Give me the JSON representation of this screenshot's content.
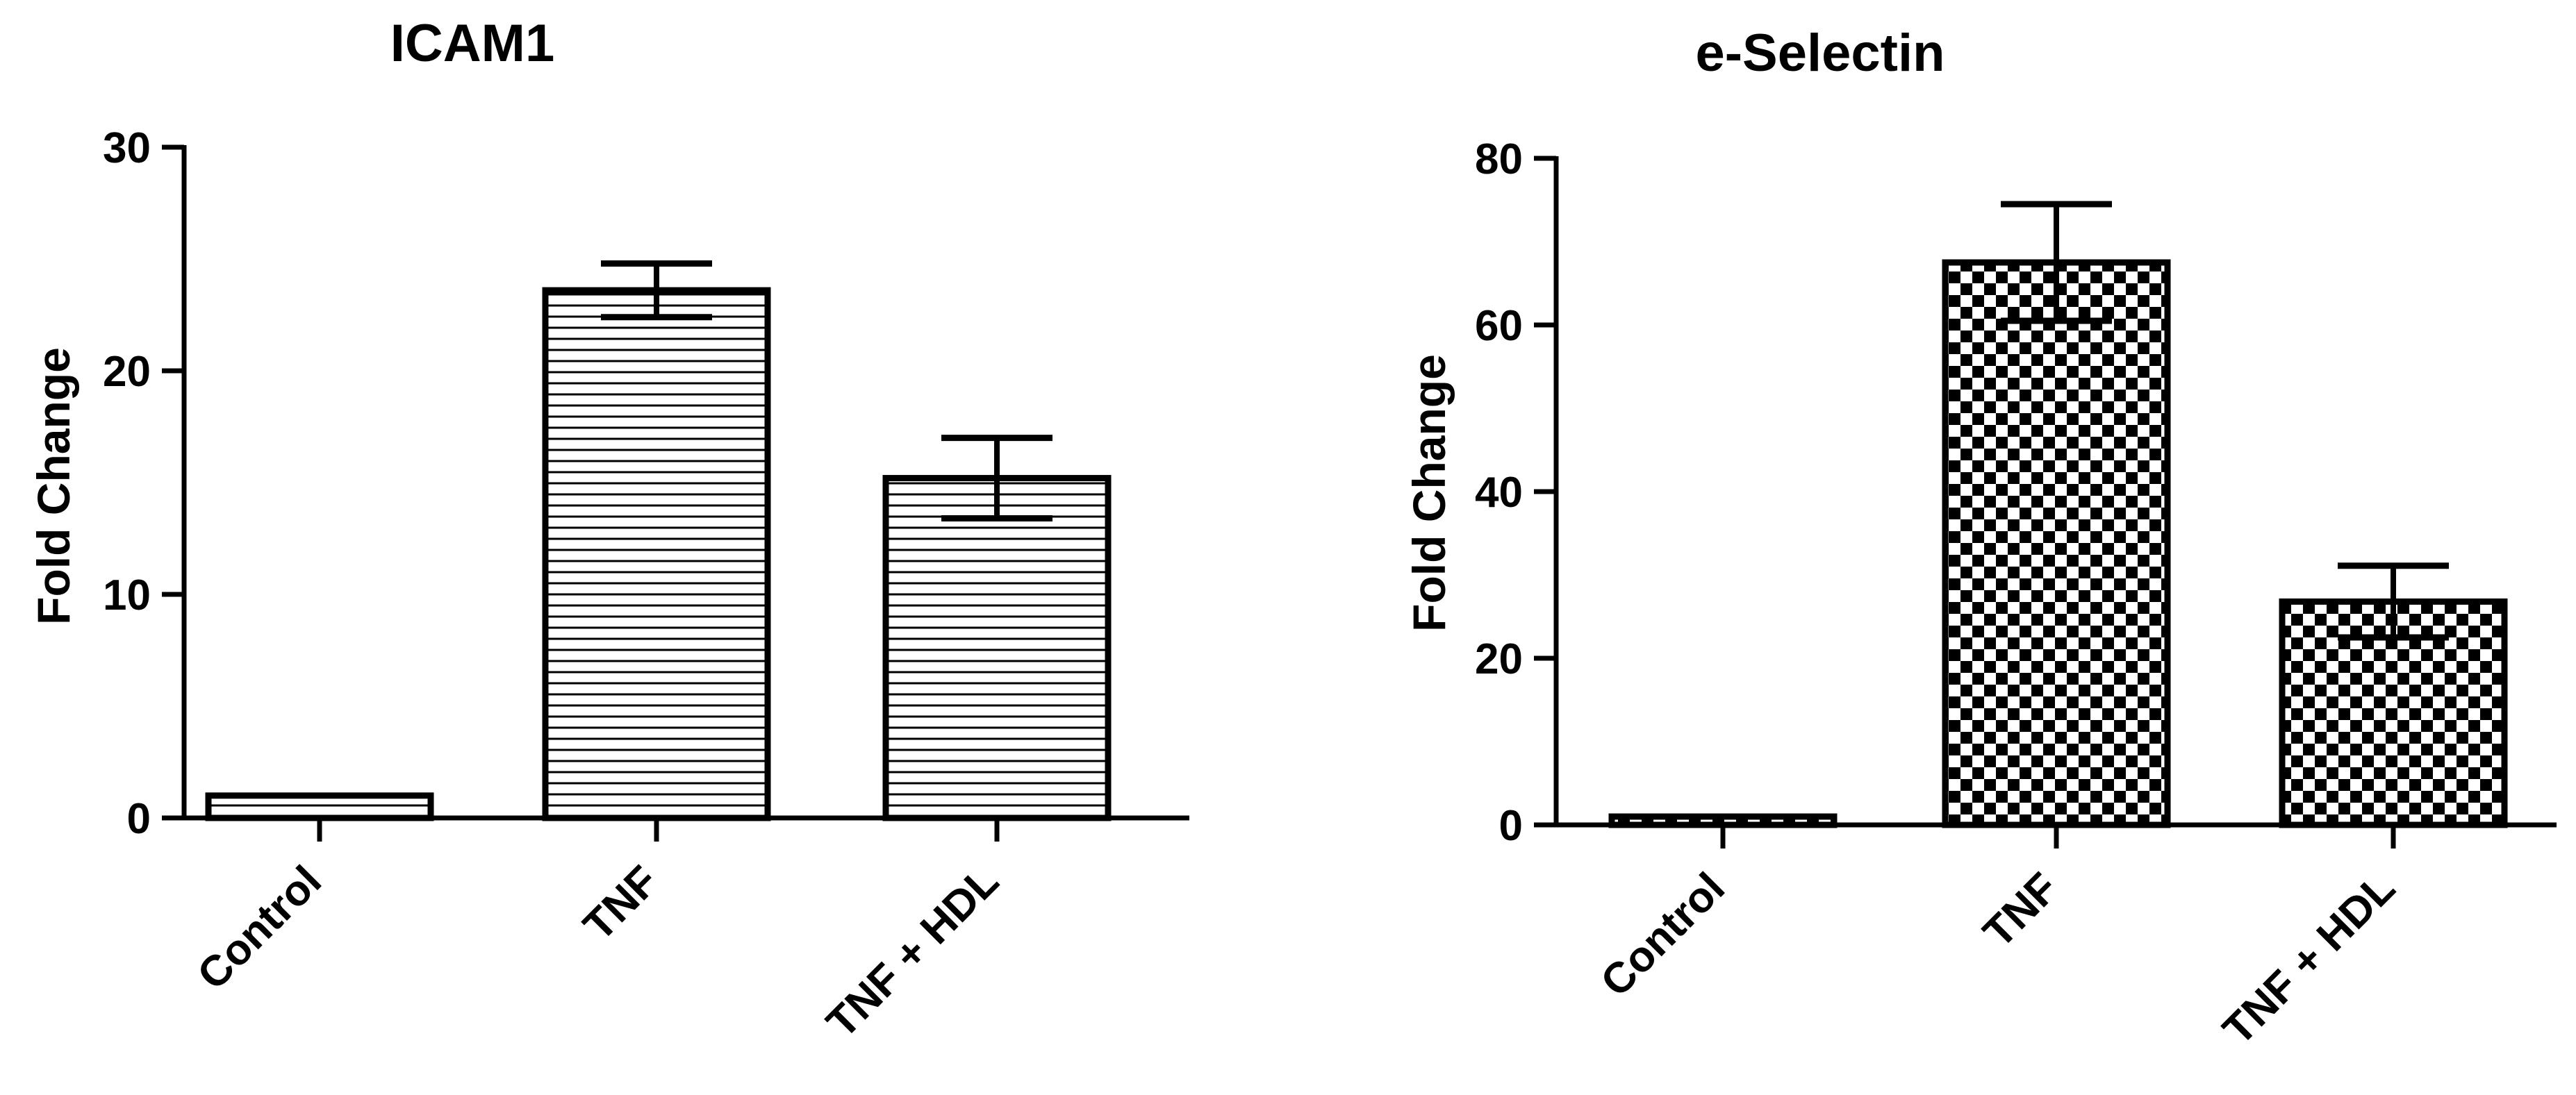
{
  "chart_data": [
    {
      "type": "bar",
      "title": "ICAM1",
      "ylabel": "Fold  Change",
      "xlabel": "",
      "ylim": [
        0,
        30
      ],
      "yticks": [
        0,
        10,
        20,
        30
      ],
      "ytick_labels": [
        "0",
        "10",
        "20",
        "30"
      ],
      "categories": [
        "Control",
        "TNF",
        "TNF + HDL"
      ],
      "values": [
        1.0,
        23.6,
        15.2
      ],
      "error": [
        0.0,
        1.2,
        1.8
      ],
      "pattern": "horizontal-lines",
      "grid": false,
      "legend": "none"
    },
    {
      "type": "bar",
      "title": "e-Selectin",
      "ylabel": "Fold  Change",
      "xlabel": "",
      "ylim": [
        0,
        80
      ],
      "yticks": [
        0,
        20,
        40,
        60,
        80
      ],
      "ytick_labels": [
        "0",
        "20",
        "40",
        "60",
        "80"
      ],
      "categories": [
        "Control",
        "TNF",
        "TNF + HDL"
      ],
      "values": [
        1.0,
        67.5,
        26.8
      ],
      "error": [
        0.0,
        7.0,
        4.3
      ],
      "pattern": "checkerboard",
      "grid": false,
      "legend": "none"
    }
  ],
  "colors": {
    "ink": "#000000",
    "fill": "#ffffff"
  }
}
